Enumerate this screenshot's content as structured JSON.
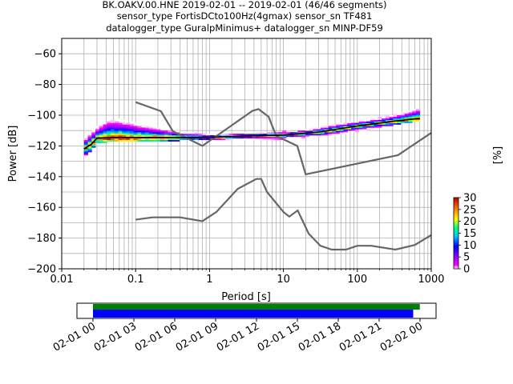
{
  "header": {
    "line1": "BK.OAKV.00.HNE   2019-02-01 -- 2019-02-01  (46/46 segments)",
    "line2": "sensor_type FortisDCto100Hz(4gmax) sensor_sn TF481",
    "line3": "datalogger_type GuralpMinimus+ datalogger_sn MINP-DF59"
  },
  "chart_data": [
    {
      "type": "heatmap",
      "xlabel": "Period [s]",
      "ylabel": "Power [dB]",
      "xscale": "log",
      "xlim": [
        0.01,
        1000
      ],
      "ylim": [
        -200,
        -50
      ],
      "xticks": [
        {
          "v": 0.01,
          "label": "0.01"
        },
        {
          "v": 0.1,
          "label": "0.1"
        },
        {
          "v": 1,
          "label": "1"
        },
        {
          "v": 10,
          "label": "10"
        },
        {
          "v": 100,
          "label": "100"
        },
        {
          "v": 1000,
          "label": "1000"
        }
      ],
      "yticks": [
        {
          "v": -60,
          "label": "−60"
        },
        {
          "v": -80,
          "label": "−80"
        },
        {
          "v": -100,
          "label": "−100"
        },
        {
          "v": -120,
          "label": "−120"
        },
        {
          "v": -140,
          "label": "−140"
        },
        {
          "v": -160,
          "label": "−160"
        },
        {
          "v": -180,
          "label": "−180"
        },
        {
          "v": -200,
          "label": "−200"
        }
      ],
      "grid": true,
      "nhnm": [
        [
          0.1,
          -168
        ],
        [
          0.17,
          -166.5
        ],
        [
          0.4,
          -166.5
        ],
        [
          0.8,
          -169
        ],
        [
          1.24,
          -163
        ],
        [
          2.4,
          -148
        ],
        [
          4.3,
          -141.5
        ],
        [
          5,
          -141.5
        ],
        [
          6,
          -150
        ],
        [
          10,
          -163
        ],
        [
          12,
          -166
        ],
        [
          15.6,
          -162
        ],
        [
          21.9,
          -177
        ],
        [
          31.6,
          -185
        ],
        [
          45,
          -187.5
        ],
        [
          70,
          -187.5
        ],
        [
          100,
          -185
        ],
        [
          154,
          -185
        ],
        [
          328,
          -187.5
        ],
        [
          600,
          -184.5
        ],
        [
          1000,
          -178
        ]
      ],
      "nlnm": [
        [
          0.1,
          -91.5
        ],
        [
          0.22,
          -97.4
        ],
        [
          0.32,
          -110.5
        ],
        [
          0.8,
          -120
        ],
        [
          3.8,
          -97.2
        ],
        [
          4.6,
          -96
        ],
        [
          6.3,
          -101
        ],
        [
          8,
          -113.5
        ],
        [
          15.4,
          -120
        ],
        [
          20,
          -138.5
        ],
        [
          354.8,
          -126
        ],
        [
          1000,
          -111.5
        ]
      ],
      "mean_curve": [
        [
          0.02,
          -122
        ],
        [
          0.025,
          -119
        ],
        [
          0.03,
          -115
        ],
        [
          0.05,
          -114.5
        ],
        [
          0.1,
          -114.5
        ],
        [
          0.3,
          -114.5
        ],
        [
          1,
          -114.5
        ],
        [
          3,
          -113.5
        ],
        [
          10,
          -113
        ],
        [
          30,
          -111
        ],
        [
          100,
          -107
        ],
        [
          300,
          -104
        ],
        [
          700,
          -102
        ]
      ],
      "psd_band": [
        [
          0.02,
          -126,
          -116
        ],
        [
          0.025,
          -123,
          -111
        ],
        [
          0.03,
          -118,
          -108
        ],
        [
          0.04,
          -117,
          -103
        ],
        [
          0.05,
          -117,
          -102
        ],
        [
          0.08,
          -117,
          -104
        ],
        [
          0.12,
          -117,
          -106
        ],
        [
          0.2,
          -117,
          -108
        ],
        [
          0.4,
          -116,
          -111
        ],
        [
          1,
          -116,
          -112.5
        ],
        [
          3,
          -115.5,
          -112
        ],
        [
          10,
          -115,
          -111
        ],
        [
          20,
          -114,
          -110
        ],
        [
          50,
          -112,
          -106
        ],
        [
          100,
          -110,
          -104
        ],
        [
          200,
          -108,
          -102
        ],
        [
          400,
          -105,
          -99
        ],
        [
          700,
          -103,
          -95
        ]
      ],
      "colorbar": {
        "label": "[%]",
        "min": 0,
        "max": 30,
        "ticks": [
          "0",
          "5",
          "10",
          "15",
          "20",
          "25",
          "30"
        ]
      }
    },
    {
      "type": "bar",
      "xlabel": "",
      "ylabel": "",
      "xlim": [
        "2019-02-01 00:00",
        "2019-02-02 00:00"
      ],
      "xticks": [
        "02-01 00",
        "02-01 03",
        "02-01 06",
        "02-01 09",
        "02-01 12",
        "02-01 15",
        "02-01 18",
        "02-01 21",
        "02-02 00"
      ],
      "series": [
        {
          "color": "#008000",
          "start": "2019-02-01 00:00",
          "end": "2019-02-01 23:59"
        },
        {
          "color": "#0000ff",
          "start": "2019-02-01 00:00",
          "end": "2019-02-01 23:30"
        }
      ]
    }
  ]
}
